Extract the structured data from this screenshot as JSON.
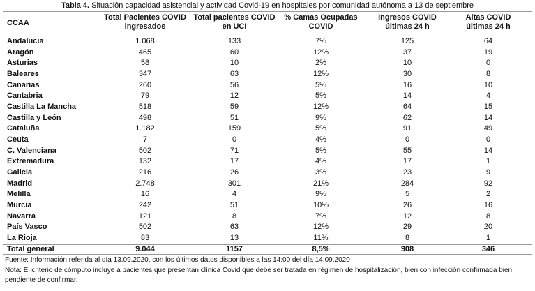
{
  "title": {
    "label": "Tabla 4.",
    "text": "Situación capacidad asistencial y actividad Covid-19 en hospitales por comunidad autónoma a 13 de septiembre"
  },
  "table": {
    "header": [
      [
        "CCAA"
      ],
      [
        "Total Pacientes COVID",
        "ingresados"
      ],
      [
        "Total pacientes COVID",
        "en UCI"
      ],
      [
        "% Camas Ocupadas",
        "COVID"
      ],
      [
        "Ingresos COVID",
        "últimas 24 h"
      ],
      [
        "Altas COVID",
        "últimas 24 h"
      ]
    ],
    "rows": [
      [
        "Andalucía",
        "1.068",
        "133",
        "7%",
        "125",
        "64"
      ],
      [
        "Aragón",
        "465",
        "60",
        "12%",
        "37",
        "19"
      ],
      [
        "Asturias",
        "58",
        "10",
        "2%",
        "10",
        "0"
      ],
      [
        "Baleares",
        "347",
        "63",
        "12%",
        "30",
        "8"
      ],
      [
        "Canarias",
        "260",
        "56",
        "5%",
        "16",
        "10"
      ],
      [
        "Cantabria",
        "79",
        "12",
        "5%",
        "14",
        "4"
      ],
      [
        "Castilla La Mancha",
        "518",
        "59",
        "12%",
        "64",
        "15"
      ],
      [
        "Castilla y León",
        "498",
        "51",
        "9%",
        "62",
        "14"
      ],
      [
        "Cataluña",
        "1.182",
        "159",
        "5%",
        "91",
        "49"
      ],
      [
        "Ceuta",
        "7",
        "0",
        "4%",
        "0",
        "0"
      ],
      [
        "C. Valenciana",
        "502",
        "71",
        "5%",
        "55",
        "14"
      ],
      [
        "Extremadura",
        "132",
        "17",
        "4%",
        "17",
        "1"
      ],
      [
        "Galicia",
        "216",
        "26",
        "3%",
        "23",
        "9"
      ],
      [
        "Madrid",
        "2.748",
        "301",
        "21%",
        "284",
        "92"
      ],
      [
        "Melilla",
        "16",
        "4",
        "9%",
        "5",
        "2"
      ],
      [
        "Murcia",
        "242",
        "51",
        "10%",
        "26",
        "16"
      ],
      [
        "Navarra",
        "121",
        "8",
        "7%",
        "12",
        "8"
      ],
      [
        "País Vasco",
        "502",
        "63",
        "12%",
        "29",
        "20"
      ],
      [
        "La Rioja",
        "83",
        "13",
        "11%",
        "8",
        "1"
      ]
    ],
    "total": [
      "Total general",
      "9.044",
      "1157",
      "8,5%",
      "908",
      "346"
    ]
  },
  "footer": {
    "source": "Fuente: Información  referida al día 13.09.2020, con los últimos datos disponibles a las 14:00 del día 14.09.2020",
    "note": "Nota:  El criterio de cómputo incluye a pacientes que presentan clínica Covid que debe ser tratada en régimen de hospitalización, bien con infección confirmada bien pendiente de confirmar."
  }
}
